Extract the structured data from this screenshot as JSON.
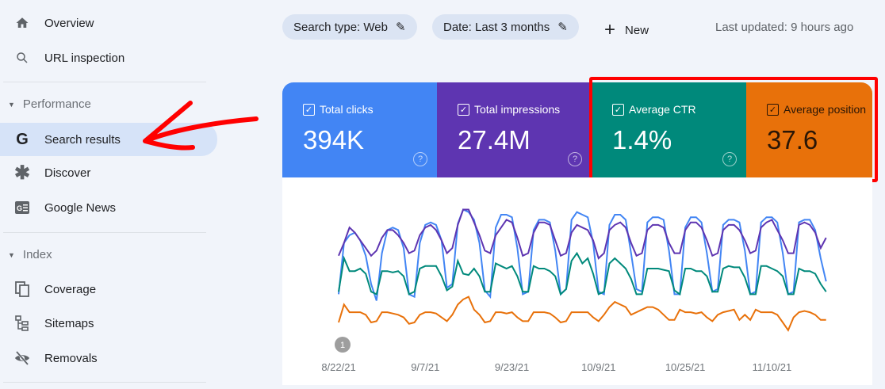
{
  "sidebar": {
    "items": [
      {
        "label": "Overview",
        "icon": "home-icon"
      },
      {
        "label": "URL inspection",
        "icon": "search-icon"
      },
      {
        "label": "Search results",
        "icon": "google-g-icon",
        "active": true
      },
      {
        "label": "Discover",
        "icon": "asterisk-icon"
      },
      {
        "label": "Google News",
        "icon": "google-news-icon"
      },
      {
        "label": "Coverage",
        "icon": "copy-icon"
      },
      {
        "label": "Sitemaps",
        "icon": "sitemap-icon"
      },
      {
        "label": "Removals",
        "icon": "eye-off-icon"
      }
    ],
    "sections": {
      "performance": "Performance",
      "index": "Index"
    }
  },
  "filters": {
    "search_type": "Search type: Web",
    "date": "Date: Last 3 months",
    "new": "New"
  },
  "last_updated": "Last updated: 9 hours ago",
  "metrics": [
    {
      "label": "Total clicks",
      "value": "394K",
      "color": "#4285f4",
      "checked": true
    },
    {
      "label": "Total impressions",
      "value": "27.4M",
      "color": "#5e35b1",
      "checked": true
    },
    {
      "label": "Average CTR",
      "value": "1.4%",
      "color": "#00897b",
      "checked": true
    },
    {
      "label": "Average position",
      "value": "37.6",
      "color": "#e8710a",
      "checked": true
    }
  ],
  "annotation_badge": "1",
  "highlight_color": "#ff0000",
  "chart_data": {
    "type": "line",
    "x_start": "8/22/21",
    "x_end": "11/20/21",
    "x_ticks": [
      "8/22/21",
      "9/7/21",
      "9/23/21",
      "10/9/21",
      "10/25/21",
      "11/10/21"
    ],
    "y_axis": "hidden (relative scale 0-100)",
    "grid": false,
    "series": [
      {
        "metric": "Total clicks",
        "color": "#4285f4",
        "values": [
          30,
          70,
          76,
          78,
          72,
          60,
          38,
          25,
          62,
          80,
          82,
          80,
          66,
          30,
          28,
          70,
          84,
          86,
          84,
          72,
          35,
          38,
          85,
          96,
          94,
          88,
          70,
          33,
          28,
          82,
          92,
          92,
          90,
          66,
          30,
          32,
          80,
          88,
          88,
          86,
          64,
          30,
          34,
          88,
          94,
          92,
          90,
          70,
          32,
          30,
          84,
          92,
          92,
          88,
          62,
          34,
          32,
          86,
          90,
          90,
          88,
          64,
          30,
          30,
          82,
          90,
          90,
          86,
          62,
          32,
          34,
          84,
          88,
          88,
          86,
          64,
          30,
          32,
          86,
          90,
          90,
          86,
          62,
          30,
          32,
          86,
          88,
          88,
          80,
          58,
          40
        ]
      },
      {
        "metric": "Total impressions",
        "color": "#5e35b1",
        "values": [
          60,
          70,
          82,
          78,
          72,
          66,
          60,
          64,
          74,
          80,
          80,
          76,
          70,
          62,
          64,
          76,
          82,
          84,
          80,
          72,
          62,
          66,
          84,
          96,
          96,
          86,
          76,
          64,
          62,
          76,
          82,
          88,
          86,
          74,
          60,
          62,
          78,
          86,
          86,
          84,
          72,
          60,
          62,
          78,
          84,
          82,
          80,
          72,
          58,
          62,
          80,
          84,
          86,
          82,
          70,
          60,
          62,
          80,
          84,
          84,
          82,
          70,
          62,
          62,
          80,
          86,
          86,
          82,
          72,
          60,
          62,
          80,
          84,
          84,
          80,
          72,
          62,
          64,
          82,
          86,
          88,
          80,
          72,
          62,
          62,
          84,
          86,
          84,
          78,
          66,
          74
        ]
      },
      {
        "metric": "Average CTR",
        "color": "#00897b",
        "values": [
          32,
          58,
          48,
          48,
          50,
          46,
          32,
          30,
          48,
          48,
          47,
          48,
          44,
          30,
          32,
          50,
          52,
          52,
          52,
          44,
          33,
          36,
          56,
          46,
          45,
          50,
          44,
          32,
          32,
          54,
          52,
          50,
          52,
          44,
          32,
          32,
          52,
          50,
          50,
          48,
          44,
          30,
          34,
          56,
          62,
          54,
          58,
          46,
          30,
          32,
          54,
          58,
          54,
          50,
          42,
          30,
          30,
          50,
          50,
          50,
          49,
          48,
          33,
          30,
          50,
          50,
          48,
          48,
          44,
          32,
          32,
          50,
          52,
          51,
          51,
          43,
          30,
          30,
          52,
          52,
          50,
          48,
          44,
          30,
          30,
          50,
          48,
          48,
          46,
          38,
          32
        ]
      },
      {
        "metric": "Average position",
        "color": "#e8710a",
        "values": [
          8,
          22,
          16,
          16,
          16,
          14,
          8,
          9,
          16,
          16,
          15,
          14,
          12,
          7,
          8,
          14,
          16,
          16,
          15,
          12,
          9,
          14,
          22,
          26,
          28,
          18,
          14,
          8,
          9,
          16,
          16,
          15,
          16,
          12,
          9,
          9,
          16,
          16,
          16,
          15,
          12,
          8,
          9,
          16,
          16,
          16,
          16,
          12,
          9,
          14,
          20,
          24,
          22,
          20,
          14,
          16,
          18,
          20,
          20,
          18,
          14,
          10,
          10,
          18,
          16,
          16,
          15,
          16,
          12,
          9,
          14,
          16,
          17,
          18,
          10,
          14,
          10,
          18,
          16,
          16,
          16,
          14,
          8,
          2,
          12,
          16,
          17,
          16,
          14,
          10,
          10
        ]
      }
    ]
  }
}
